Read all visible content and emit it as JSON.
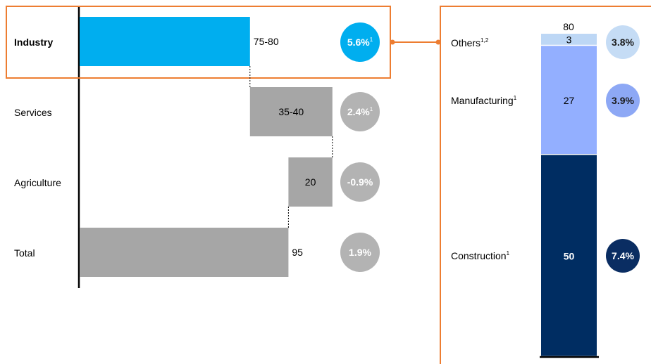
{
  "chart_data": [
    {
      "type": "bar",
      "chart_subtype": "waterfall",
      "orientation": "horizontal",
      "categories": [
        "Industry",
        "Services",
        "Agriculture",
        "Total"
      ],
      "value_labels": [
        "75-80",
        "35-40",
        "20",
        "95"
      ],
      "segments": [
        {
          "start": 0,
          "end": 77.5
        },
        {
          "start": 77.5,
          "end": 115
        },
        {
          "start": 115,
          "end": 95
        },
        {
          "start": 0,
          "end": 95
        }
      ],
      "growth_rates": [
        "5.6%",
        "2.4%",
        "-0.9%",
        "1.9%"
      ],
      "growth_superscripts": [
        "1",
        "1",
        "",
        ""
      ],
      "highlighted_category": "Industry",
      "colors": {
        "highlight": "#00AEEF",
        "neutral": "#A6A6A6",
        "bubble_neutral": "#B3B3B3",
        "callout": "#ED7D31"
      }
    },
    {
      "type": "bar",
      "chart_subtype": "stacked",
      "orientation": "vertical",
      "total_label": "80",
      "segments": [
        {
          "name": "Construction",
          "superscript": "1",
          "value": 50,
          "label": "50",
          "growth": "7.4%",
          "color": "#002D62",
          "bubble_color": "#0A2D62"
        },
        {
          "name": "Manufacturing",
          "superscript": "1",
          "value": 27,
          "label": "27",
          "growth": "3.9%",
          "color": "#93AFFF",
          "bubble_color": "#8DA8F5"
        },
        {
          "name": "Others",
          "superscript": "1,2",
          "value": 3,
          "label": "3",
          "growth": "3.8%",
          "color": "#BDD7F5",
          "bubble_color": "#C5DCF5"
        }
      ]
    }
  ]
}
